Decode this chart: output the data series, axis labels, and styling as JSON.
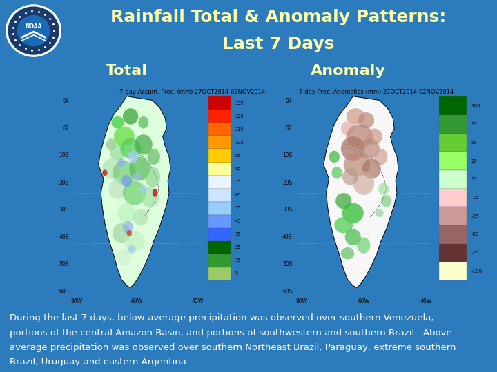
{
  "title_line1": "Rainfall Total & Anomaly Patterns:",
  "title_line2": "Last 7 Days",
  "title_color": "#FFFFAA",
  "title_fontsize": 18,
  "bg_color": "#2B7BBD",
  "label_total": "Total",
  "label_anomaly": "Anomaly",
  "label_color": "#FFFFAA",
  "label_fontsize": 16,
  "body_text_line1": "During the last 7 days, below-average precipitation was observed over southern Venezuela,",
  "body_text_line2": "portions of the central Amazon Basin, and portions of southwestern and southern Brazil.  Above-",
  "body_text_line3": "average precipitation was observed over southern Northeast Brazil, Paraguay, extreme southern",
  "body_text_line4": "Brazil, Uruguay and eastern Argentina.",
  "body_text_color": "#FFFFFF",
  "body_fontsize": 9.5,
  "colorbar_total_labels": [
    "135",
    "125",
    "115",
    "105",
    "95",
    "85",
    "75",
    "65",
    "55",
    "45",
    "35",
    "25",
    "15",
    "5"
  ],
  "colorbar_total_colors": [
    "#CC0000",
    "#FF2200",
    "#FF6600",
    "#FF9900",
    "#FFCC00",
    "#FFFF99",
    "#E8F4FF",
    "#CCE5FF",
    "#99CCFF",
    "#6699FF",
    "#3366FF",
    "#006600",
    "#339933",
    "#99CC66"
  ],
  "colorbar_anomaly_labels": [
    "100",
    "75",
    "50",
    "25",
    "15",
    "-15",
    "-25",
    "-50",
    "-75",
    "-100"
  ],
  "colorbar_anomaly_colors": [
    "#006600",
    "#339933",
    "#66CC33",
    "#99FF66",
    "#CCFFCC",
    "#FFCCCC",
    "#CC9999",
    "#996666",
    "#663333",
    "#FFFFCC"
  ],
  "map_bg_color": "#FFFFFF",
  "ocean_color": "#FFFFFF",
  "left_map_title": "7-day Accum. Prec. (mm) 27OCT2014-02NOV2014",
  "right_map_title": "7-day Prec. Anomalies (mm) 27OCT2014-02NOV2014",
  "map_title_fontsize": 6,
  "lat_labels": [
    "04",
    "02",
    "10S",
    "20S",
    "30S",
    "40S",
    "50S",
    "60S"
  ],
  "lon_labels_left": [
    "80W",
    "60W",
    "40W"
  ],
  "lon_labels_right": [
    "80W",
    "60W",
    "40W"
  ]
}
